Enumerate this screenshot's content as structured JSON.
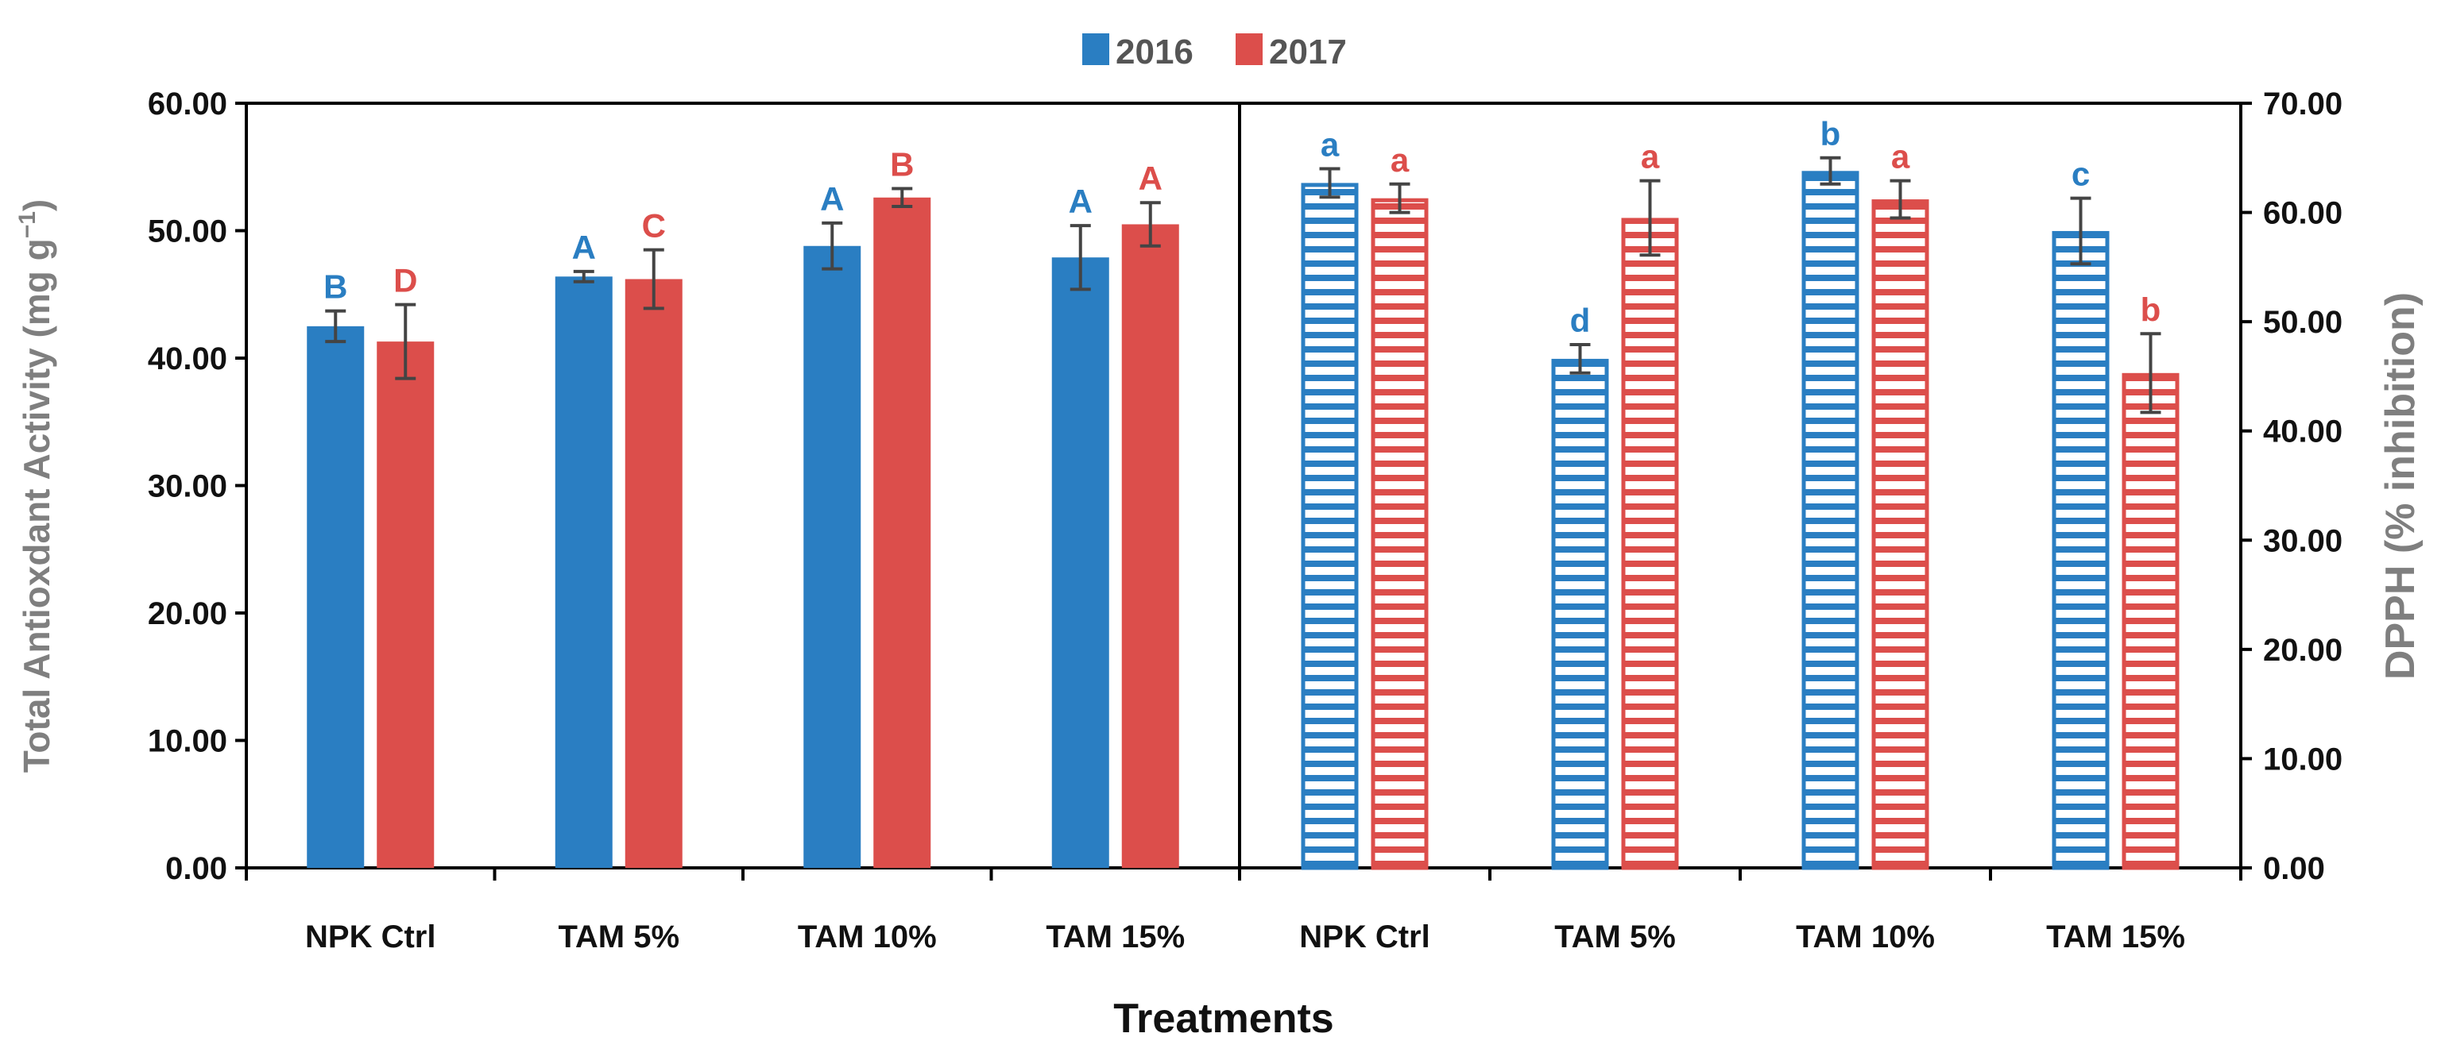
{
  "colors": {
    "2016": "#2a7ec2",
    "2017": "#dc4e4b"
  },
  "legend": [
    "2016",
    "2017"
  ],
  "xlabel": "Treatments",
  "chart_data": [
    {
      "type": "bar",
      "panel": "left",
      "style": "solid",
      "ylabel": "Total Antioxdant Activity (mg g⁻¹)",
      "ylabel_main": "Total Antioxdant Activity (mg g",
      "ylabel_sup": "−1",
      "ylabel_close": ")",
      "ylim": [
        0,
        60
      ],
      "yticks": [
        "0.00",
        "10.00",
        "20.00",
        "30.00",
        "40.00",
        "50.00",
        "60.00"
      ],
      "categories": [
        "NPK Ctrl",
        "TAM 5%",
        "TAM 10%",
        "TAM 15%"
      ],
      "series": [
        {
          "name": "2016",
          "values": [
            42.5,
            46.4,
            48.8,
            47.9
          ],
          "errors": [
            1.2,
            0.4,
            1.8,
            2.5
          ],
          "letters": [
            "B",
            "A",
            "A",
            "A"
          ]
        },
        {
          "name": "2017",
          "values": [
            41.3,
            46.2,
            52.6,
            50.5
          ],
          "errors": [
            2.9,
            2.3,
            0.7,
            1.7
          ],
          "letters": [
            "D",
            "C",
            "B",
            "A"
          ]
        }
      ]
    },
    {
      "type": "bar",
      "panel": "right",
      "style": "horizontal-hatch",
      "ylabel": "DPPH (% inhibition)",
      "ylim": [
        0,
        70
      ],
      "yticks": [
        "0.00",
        "10.00",
        "20.00",
        "30.00",
        "40.00",
        "50.00",
        "60.00",
        "70.00"
      ],
      "categories": [
        "NPK Ctrl",
        "TAM 5%",
        "TAM 10%",
        "TAM 15%"
      ],
      "series": [
        {
          "name": "2016",
          "values": [
            62.7,
            46.6,
            63.8,
            58.3
          ],
          "errors": [
            1.3,
            1.3,
            1.2,
            3.0
          ],
          "letters": [
            "a",
            "d",
            "b",
            "c"
          ]
        },
        {
          "name": "2017",
          "values": [
            61.3,
            59.5,
            61.2,
            45.3
          ],
          "errors": [
            1.3,
            3.4,
            1.7,
            3.6
          ],
          "letters": [
            "a",
            "a",
            "a",
            "b"
          ]
        }
      ]
    }
  ]
}
